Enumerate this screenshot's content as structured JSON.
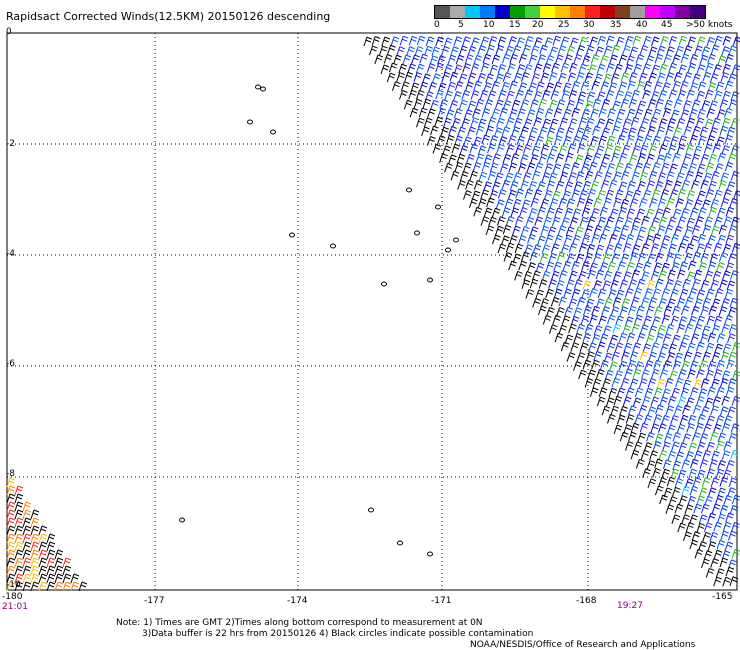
{
  "title": "Rapidsact Corrected Winds(12.5KM) 20150126 descending",
  "legend": {
    "colors": [
      "#555555",
      "#aaaaaa",
      "#00c8ff",
      "#007bff",
      "#0000cc",
      "#00a000",
      "#40d040",
      "#ffff00",
      "#ffc000",
      "#ff8000",
      "#ff2020",
      "#c00000",
      "#804020",
      "#a0a0a0",
      "#ff00ff",
      "#c000ff",
      "#8000a0",
      "#400080"
    ],
    "labels": [
      "0",
      "5",
      "10",
      "15",
      "20",
      "25",
      "30",
      "35",
      "40",
      "45",
      ">50 knots"
    ]
  },
  "axes": {
    "lat_labels": [
      "0",
      "-2",
      "-4",
      "-6",
      "-8",
      "-10"
    ],
    "lon_labels": [
      "-180",
      "-177",
      "-174",
      "-171",
      "-168",
      "-165"
    ]
  },
  "times": {
    "left": "21:01",
    "right": "19:27"
  },
  "notes": [
    "Note: 1) Times are GMT 2)Times along bottom correspond to measurement at 0N",
    "3)Data buffer is 22 hrs from 20150126 4) Black circles indicate possible contamination",
    "NOAA/NESDIS/Office of Research and Applications"
  ]
}
